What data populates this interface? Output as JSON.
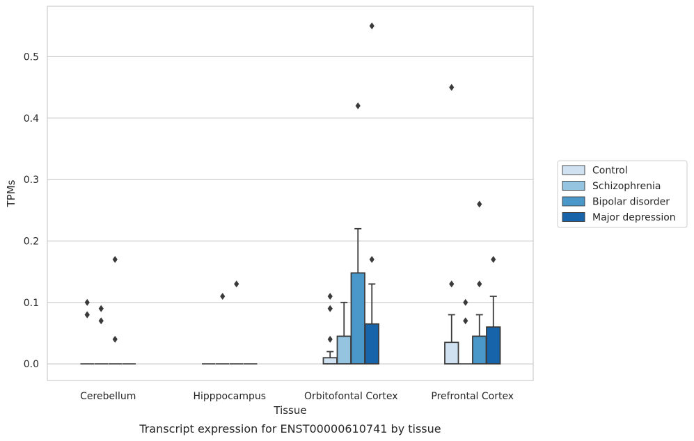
{
  "chart_data": {
    "type": "box",
    "title": "",
    "caption": "Transcript expression for ENST00000610741 by tissue",
    "xlabel": "Tissue",
    "ylabel": "TPMs",
    "ylim": [
      -0.027,
      0.582
    ],
    "yticks": [
      0.0,
      0.1,
      0.2,
      0.3,
      0.4,
      0.5
    ],
    "ytick_labels": [
      "0.0",
      "0.1",
      "0.2",
      "0.3",
      "0.4",
      "0.5"
    ],
    "grid": "horizontal",
    "legend_position": "right",
    "categories": [
      "Cerebellum",
      "Hipppocampus",
      "Orbitofontal Cortex",
      "Prefrontal Cortex"
    ],
    "series": [
      {
        "name": "Control",
        "color": "#d0e1f2",
        "boxes": [
          {
            "q1": 0,
            "median": 0,
            "q3": 0,
            "whisker_low": 0,
            "whisker_high": 0,
            "outliers": [
              0.1,
              0.08,
              0.08
            ]
          },
          {
            "q1": 0,
            "median": 0,
            "q3": 0,
            "whisker_low": 0,
            "whisker_high": 0,
            "outliers": []
          },
          {
            "q1": 0,
            "median": 0,
            "q3": 0.01,
            "whisker_low": 0,
            "whisker_high": 0.02,
            "outliers": [
              0.11,
              0.09,
              0.04
            ]
          },
          {
            "q1": 0,
            "median": 0,
            "q3": 0.035,
            "whisker_low": 0,
            "whisker_high": 0.08,
            "outliers": [
              0.45,
              0.13
            ]
          }
        ]
      },
      {
        "name": "Schizophrenia",
        "color": "#94c4df",
        "boxes": [
          {
            "q1": 0,
            "median": 0,
            "q3": 0,
            "whisker_low": 0,
            "whisker_high": 0,
            "outliers": [
              0.09,
              0.07
            ]
          },
          {
            "q1": 0,
            "median": 0,
            "q3": 0,
            "whisker_low": 0,
            "whisker_high": 0,
            "outliers": [
              0.11
            ]
          },
          {
            "q1": 0,
            "median": 0,
            "q3": 0.045,
            "whisker_low": 0,
            "whisker_high": 0.1,
            "outliers": []
          },
          {
            "q1": 0,
            "median": 0,
            "q3": 0,
            "whisker_low": 0,
            "whisker_high": 0,
            "outliers": [
              0.1,
              0.07
            ]
          }
        ]
      },
      {
        "name": "Bipolar disorder",
        "color": "#4a98c9",
        "boxes": [
          {
            "q1": 0,
            "median": 0,
            "q3": 0,
            "whisker_low": 0,
            "whisker_high": 0,
            "outliers": [
              0.17,
              0.04
            ]
          },
          {
            "q1": 0,
            "median": 0,
            "q3": 0,
            "whisker_low": 0,
            "whisker_high": 0,
            "outliers": [
              0.13
            ]
          },
          {
            "q1": 0,
            "median": 0,
            "q3": 0.148,
            "whisker_low": 0,
            "whisker_high": 0.22,
            "outliers": [
              0.42
            ]
          },
          {
            "q1": 0,
            "median": 0,
            "q3": 0.045,
            "whisker_low": 0,
            "whisker_high": 0.08,
            "outliers": [
              0.26,
              0.13
            ]
          }
        ]
      },
      {
        "name": "Major depression",
        "color": "#1764ab",
        "boxes": [
          {
            "q1": 0,
            "median": 0,
            "q3": 0,
            "whisker_low": 0,
            "whisker_high": 0,
            "outliers": []
          },
          {
            "q1": 0,
            "median": 0,
            "q3": 0,
            "whisker_low": 0,
            "whisker_high": 0,
            "outliers": []
          },
          {
            "q1": 0,
            "median": 0,
            "q3": 0.065,
            "whisker_low": 0,
            "whisker_high": 0.13,
            "outliers": [
              0.55,
              0.17
            ]
          },
          {
            "q1": 0,
            "median": 0,
            "q3": 0.06,
            "whisker_low": 0,
            "whisker_high": 0.11,
            "outliers": [
              0.17
            ]
          }
        ]
      }
    ],
    "colors": {
      "edge": "#3a3a3a",
      "grid": "#cccccc",
      "frame": "#cccccc"
    }
  }
}
